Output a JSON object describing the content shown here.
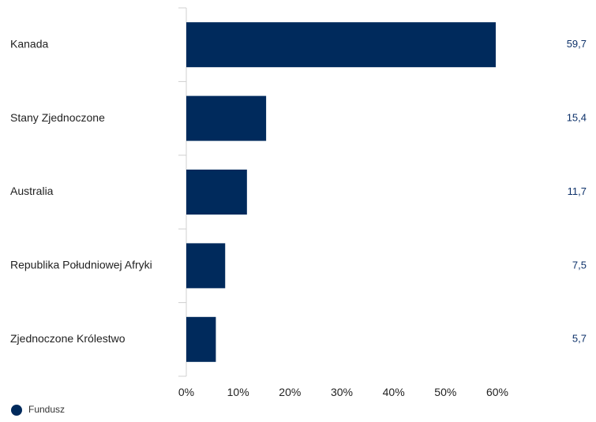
{
  "chart_data": {
    "type": "bar",
    "orientation": "horizontal",
    "categories": [
      "Kanada",
      "Stany Zjednoczone",
      "Australia",
      "Republika Południowej Afryki",
      "Zjednoczone Królestwo"
    ],
    "series": [
      {
        "name": "Fundusz",
        "values": [
          59.7,
          15.4,
          11.7,
          7.5,
          5.7
        ],
        "value_labels": [
          "59,7",
          "15,4",
          "11,7",
          "7,5",
          "5,7"
        ]
      }
    ],
    "xlim": [
      0,
      70
    ],
    "x_ticks": [
      0,
      10,
      20,
      30,
      40,
      50,
      60
    ],
    "x_tick_labels": [
      "0%",
      "10%",
      "20%",
      "30%",
      "40%",
      "50%",
      "60%"
    ],
    "grid": false,
    "legend": "bottom-left",
    "colors": {
      "bar": "#002a5c",
      "legend_marker": "#002a5c",
      "data_label": "#0c3069",
      "axis": "#d0d0d0"
    }
  }
}
